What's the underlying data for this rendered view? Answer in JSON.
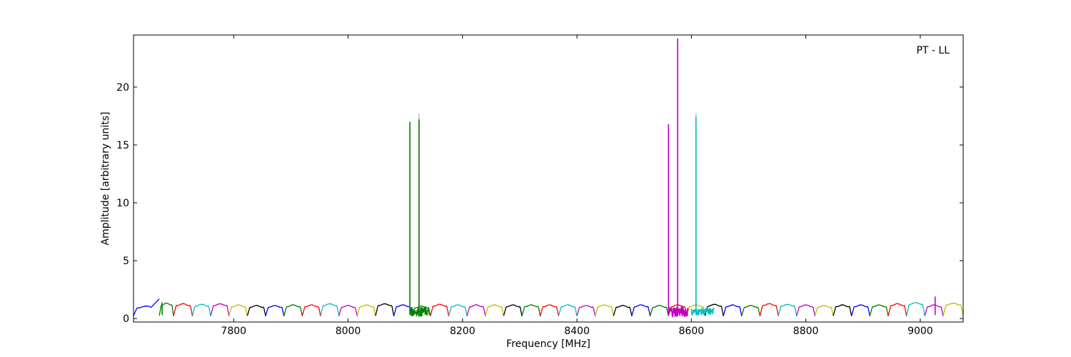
{
  "chart_data": {
    "type": "line",
    "title": "",
    "annotation": "PT - LL",
    "xlabel": "Frequency [MHz]",
    "ylabel": "Amplitude [arbitrary units]",
    "xlim": [
      7625,
      9075
    ],
    "ylim": [
      -0.3,
      24.5
    ],
    "x_ticks": [
      7800,
      8000,
      8200,
      8400,
      8600,
      8800,
      9000
    ],
    "y_ticks": [
      0,
      5,
      10,
      15,
      20
    ],
    "grid": false,
    "legend": "none",
    "channel_shape": "bandpass ripple per channel: rises from ~0.2 at channel edge to ~1.1-1.3 in passband, dips back near ~0.2 at next edge",
    "channels": [
      {
        "start": 7625,
        "end": 7670,
        "color": "#0000ff",
        "base": 1.0,
        "edge_peak": 1.7
      },
      {
        "start": 7670,
        "end": 7695,
        "color": "#007f00",
        "base": 1.25
      },
      {
        "start": 7695,
        "end": 7728,
        "color": "#ff0000",
        "base": 1.2
      },
      {
        "start": 7728,
        "end": 7760,
        "color": "#00bfbf",
        "base": 1.15
      },
      {
        "start": 7760,
        "end": 7792,
        "color": "#bf00bf",
        "base": 1.2
      },
      {
        "start": 7792,
        "end": 7824,
        "color": "#bfbf00",
        "base": 1.1
      },
      {
        "start": 7824,
        "end": 7856,
        "color": "#000000",
        "base": 1.05
      },
      {
        "start": 7856,
        "end": 7888,
        "color": "#0000ff",
        "base": 1.05
      },
      {
        "start": 7888,
        "end": 7920,
        "color": "#007f00",
        "base": 1.1
      },
      {
        "start": 7920,
        "end": 7952,
        "color": "#ff0000",
        "base": 1.1
      },
      {
        "start": 7952,
        "end": 7984,
        "color": "#00bfbf",
        "base": 1.2
      },
      {
        "start": 7984,
        "end": 8016,
        "color": "#bf00bf",
        "base": 1.05
      },
      {
        "start": 8016,
        "end": 8048,
        "color": "#bfbf00",
        "base": 1.1
      },
      {
        "start": 8048,
        "end": 8080,
        "color": "#000000",
        "base": 1.2
      },
      {
        "start": 8080,
        "end": 8112,
        "color": "#0000ff",
        "base": 1.1
      },
      {
        "start": 8112,
        "end": 8144,
        "color": "#007f00",
        "base": 1.0
      },
      {
        "start": 8144,
        "end": 8176,
        "color": "#ff0000",
        "base": 1.15
      },
      {
        "start": 8176,
        "end": 8208,
        "color": "#00bfbf",
        "base": 1.1
      },
      {
        "start": 8208,
        "end": 8240,
        "color": "#bf00bf",
        "base": 1.1
      },
      {
        "start": 8240,
        "end": 8272,
        "color": "#bfbf00",
        "base": 1.1
      },
      {
        "start": 8272,
        "end": 8304,
        "color": "#000000",
        "base": 1.1
      },
      {
        "start": 8304,
        "end": 8336,
        "color": "#007f00",
        "base": 1.1
      },
      {
        "start": 8336,
        "end": 8368,
        "color": "#ff0000",
        "base": 1.1
      },
      {
        "start": 8368,
        "end": 8400,
        "color": "#00bfbf",
        "base": 1.1
      },
      {
        "start": 8400,
        "end": 8432,
        "color": "#bf00bf",
        "base": 1.05
      },
      {
        "start": 8432,
        "end": 8464,
        "color": "#bfbf00",
        "base": 1.1
      },
      {
        "start": 8464,
        "end": 8496,
        "color": "#000000",
        "base": 1.05
      },
      {
        "start": 8496,
        "end": 8528,
        "color": "#0000ff",
        "base": 1.1
      },
      {
        "start": 8528,
        "end": 8560,
        "color": "#007f00",
        "base": 1.05
      },
      {
        "start": 8560,
        "end": 8592,
        "color": "#ff0000",
        "base": 1.1
      },
      {
        "start": 8592,
        "end": 8624,
        "color": "#bfbf00",
        "base": 1.1
      },
      {
        "start": 8624,
        "end": 8656,
        "color": "#000000",
        "base": 1.15
      },
      {
        "start": 8656,
        "end": 8688,
        "color": "#0000ff",
        "base": 1.1
      },
      {
        "start": 8688,
        "end": 8720,
        "color": "#007f00",
        "base": 1.05
      },
      {
        "start": 8720,
        "end": 8752,
        "color": "#ff0000",
        "base": 1.2
      },
      {
        "start": 8752,
        "end": 8784,
        "color": "#00bfbf",
        "base": 1.15
      },
      {
        "start": 8784,
        "end": 8816,
        "color": "#bf00bf",
        "base": 1.1
      },
      {
        "start": 8816,
        "end": 8848,
        "color": "#bfbf00",
        "base": 1.05
      },
      {
        "start": 8848,
        "end": 8880,
        "color": "#000000",
        "base": 1.1
      },
      {
        "start": 8880,
        "end": 8912,
        "color": "#0000ff",
        "base": 1.1
      },
      {
        "start": 8912,
        "end": 8944,
        "color": "#007f00",
        "base": 1.1
      },
      {
        "start": 8944,
        "end": 8976,
        "color": "#ff0000",
        "base": 1.2
      },
      {
        "start": 8976,
        "end": 9008,
        "color": "#00bfbf",
        "base": 1.3
      },
      {
        "start": 9008,
        "end": 9040,
        "color": "#bf00bf",
        "base": 1.1
      },
      {
        "start": 9040,
        "end": 9075,
        "color": "#bfbf00",
        "base": 1.25
      }
    ],
    "spikes": [
      {
        "x": 8108,
        "y": 17.0,
        "color": "#007f00"
      },
      {
        "x": 8124,
        "y": 17.7,
        "color": "#bfbfbf"
      },
      {
        "x": 8124,
        "y": 17.2,
        "color": "#007f00"
      },
      {
        "x": 8560,
        "y": 16.8,
        "color": "#bf00bf"
      },
      {
        "x": 8576,
        "y": 24.2,
        "color": "#bf00bf"
      },
      {
        "x": 8608,
        "y": 17.7,
        "color": "#bfbfbf"
      },
      {
        "x": 8608,
        "y": 17.4,
        "color": "#00bfbf"
      },
      {
        "x": 9026,
        "y": 1.9,
        "color": "#bf00bf"
      },
      {
        "x": 7675,
        "y": 1.4,
        "color": "#007f00"
      }
    ],
    "noise_regions": [
      {
        "start": 8108,
        "end": 8142,
        "color": "#007f00",
        "amplitude": 0.5
      },
      {
        "start": 8560,
        "end": 8594,
        "color": "#bf00bf",
        "amplitude": 0.6
      },
      {
        "start": 8600,
        "end": 8640,
        "color": "#00bfbf",
        "amplitude": 0.4
      }
    ]
  }
}
